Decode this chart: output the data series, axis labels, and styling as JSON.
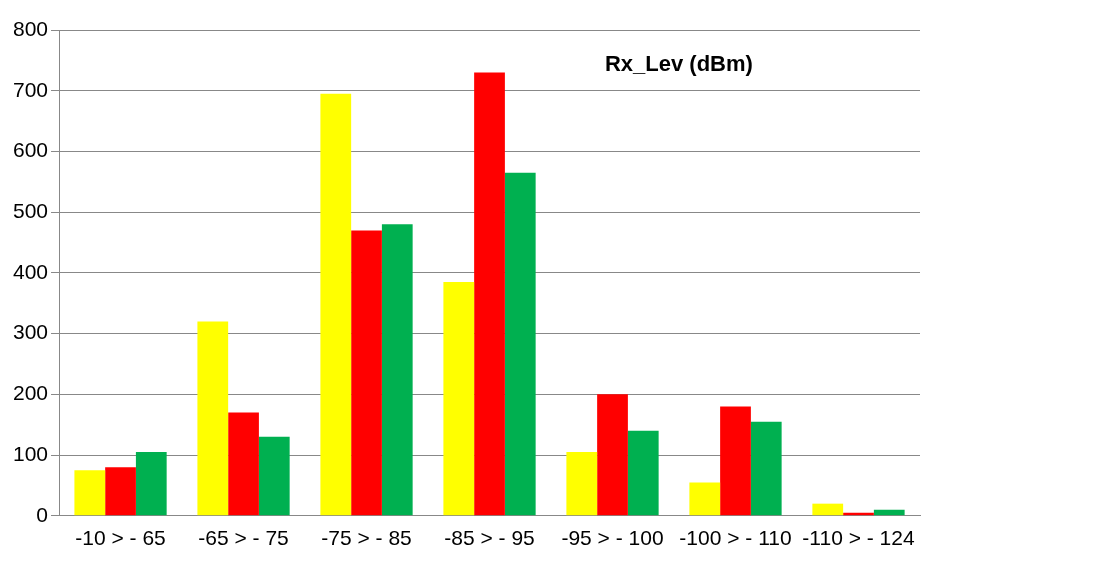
{
  "chart_data": {
    "type": "bar",
    "title": "Rx_Lev (dBm)",
    "categories": [
      "-10 > - 65",
      "-65 > - 75",
      "-75 > - 85",
      "-85 > - 95",
      "-95 > - 100",
      "-100 > - 110",
      "-110 > - 124"
    ],
    "series": [
      {
        "color": "#ffff00",
        "values": [
          75,
          320,
          695,
          385,
          105,
          55,
          20
        ]
      },
      {
        "color": "#ff0000",
        "values": [
          80,
          170,
          470,
          730,
          200,
          180,
          5
        ]
      },
      {
        "color": "#00b050",
        "values": [
          105,
          130,
          480,
          565,
          140,
          155,
          10
        ]
      }
    ],
    "ylim": [
      0,
      800
    ],
    "yticks": [
      0,
      100,
      200,
      300,
      400,
      500,
      600,
      700,
      800
    ],
    "grid": "y"
  }
}
